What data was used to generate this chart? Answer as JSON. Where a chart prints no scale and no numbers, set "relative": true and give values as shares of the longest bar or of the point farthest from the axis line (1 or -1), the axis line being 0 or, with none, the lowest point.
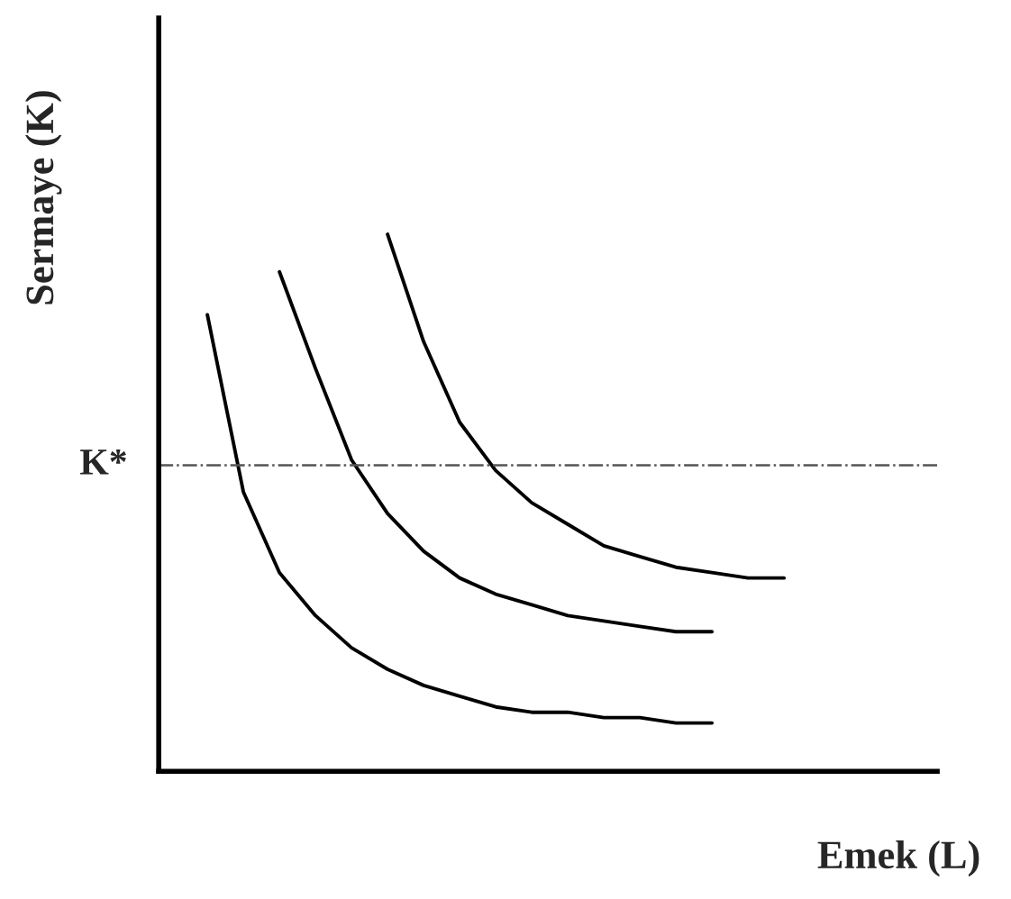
{
  "chart_data": {
    "type": "line",
    "relative": true,
    "xlabel": "Emek (L)",
    "ylabel": "Sermaye (K)",
    "categories": [
      null,
      null,
      null,
      null,
      null,
      null,
      null,
      null,
      null,
      null,
      null,
      null,
      null,
      null,
      null,
      null,
      null
    ],
    "series": [
      {
        "color": "#000000",
        "values": [
          0.85,
          0.52,
          0.37,
          0.29,
          0.23,
          0.19,
          0.16,
          0.14,
          0.12,
          0.11,
          0.11,
          0.1,
          0.1,
          0.09,
          0.09,
          null,
          null
        ]
      },
      {
        "color": "#000000",
        "values": [
          null,
          null,
          0.93,
          0.75,
          0.58,
          0.48,
          0.41,
          0.36,
          0.33,
          0.31,
          0.29,
          0.28,
          0.27,
          0.26,
          0.26,
          null,
          null
        ]
      },
      {
        "color": "#000000",
        "values": [
          null,
          null,
          null,
          null,
          null,
          1.0,
          0.8,
          0.65,
          0.56,
          0.5,
          0.46,
          0.42,
          0.4,
          0.38,
          0.37,
          0.36,
          0.36
        ]
      }
    ],
    "ref_lines": [
      {
        "axis": "y",
        "value": 0.57,
        "label": "K*",
        "color": "#555555",
        "line_style": "dashdot"
      }
    ],
    "legend": false,
    "marker": "none",
    "line_style": "solid"
  }
}
